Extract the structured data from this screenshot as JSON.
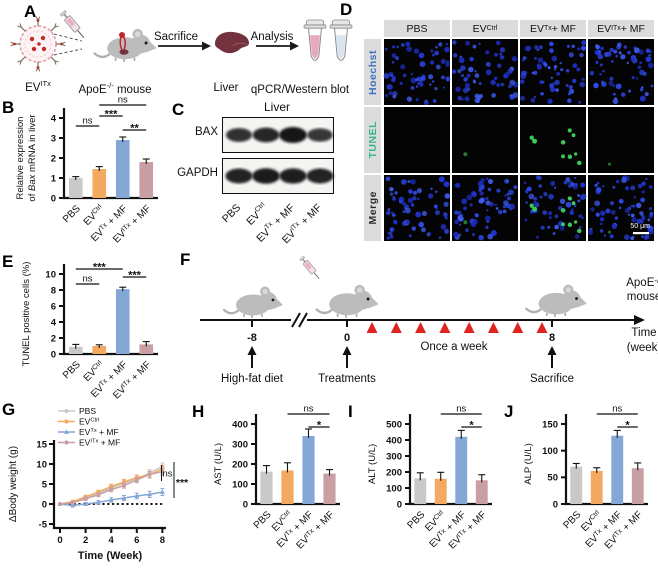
{
  "panel_labels": {
    "A": "A",
    "B": "B",
    "C": "C",
    "D": "D",
    "E": "E",
    "F": "F",
    "G": "G",
    "H": "H",
    "I": "I",
    "J": "J"
  },
  "groups": {
    "names": [
      [
        {
          "t": "PBS"
        }
      ],
      [
        {
          "t": "EV"
        },
        {
          "t": "Ctrl",
          "sup": 1
        }
      ],
      [
        {
          "t": "EV"
        },
        {
          "t": "Tx",
          "sup": 1
        },
        {
          "t": " + MF"
        }
      ],
      [
        {
          "t": "EV"
        },
        {
          "t": "ITx",
          "sup": 1
        },
        {
          "t": " + MF"
        }
      ]
    ],
    "colors": [
      "#c9c9c9",
      "#f3a95f",
      "#84a7d6",
      "#c99fa4"
    ]
  },
  "panelA": {
    "ev_label": [
      {
        "t": "EV"
      },
      {
        "t": "ITx",
        "sup": 1
      }
    ],
    "mouse_label": [
      {
        "t": "ApoE"
      },
      {
        "t": "-/-",
        "sup": 1
      },
      {
        "t": " mouse"
      }
    ],
    "step1": "Sacrifice",
    "step2": "Analysis",
    "liver_label": "Liver",
    "analysis_label": "qPCR/Western blot"
  },
  "panelC": {
    "title": "Liver",
    "band_labels": [
      "BAX",
      "GAPDH"
    ],
    "bax_intensities": [
      0.75,
      0.85,
      1.0,
      0.7
    ],
    "gapdh_intensities": [
      0.88,
      0.95,
      0.92,
      0.88
    ]
  },
  "panelD": {
    "row_labels": [
      {
        "text": "Hoechst",
        "color": "#3a6fc4"
      },
      {
        "text": "TUNEL",
        "color": "#37b886"
      },
      {
        "text": "Merge",
        "color": "#2b2b2b"
      }
    ],
    "scale_bar": "50 μm",
    "hoechst_count": 56,
    "tunel_counts": [
      0,
      1,
      9,
      1
    ]
  },
  "panelF": {
    "tick_labels": [
      "-8",
      "0",
      "8"
    ],
    "event_labels": [
      "High-fat diet",
      "Treatments",
      "Sacrifice"
    ],
    "repeat_label": "Once a week",
    "n_triangles": 8,
    "triangle_color": "#e02420",
    "mouse_label_lines": [
      [
        {
          "t": "ApoE"
        },
        {
          "t": "-/-",
          "sup": 1
        }
      ],
      [
        {
          "t": "mouse"
        }
      ]
    ],
    "time_label_lines": [
      "Time",
      "(week)"
    ]
  },
  "chart_data": [
    {
      "id": "B",
      "type": "bar",
      "ylabel_rich": [
        [
          {
            "t": "Relative expression"
          }
        ],
        [
          {
            "t": "of "
          },
          {
            "t": "Bax",
            "it": 1
          },
          {
            "t": " mRNA in liver"
          }
        ]
      ],
      "ylim": [
        0,
        4
      ],
      "yticks": [
        0,
        1,
        2,
        3,
        4
      ],
      "values": [
        1.0,
        1.45,
        2.9,
        1.8
      ],
      "errors": [
        0.07,
        0.12,
        0.15,
        0.15
      ],
      "sig": [
        {
          "a": 0,
          "b": 1,
          "t": "ns",
          "y": 26
        },
        {
          "a": 1,
          "b": 2,
          "t": "***",
          "y": 16
        },
        {
          "a": 1,
          "b": 3,
          "t": "ns",
          "y": 5
        },
        {
          "a": 2,
          "b": 3,
          "t": "**",
          "y": 30
        }
      ]
    },
    {
      "id": "E",
      "type": "bar",
      "ylabel_rich": [
        [
          {
            "t": "TUNEL positive cells (%)"
          }
        ]
      ],
      "ylim": [
        0,
        10
      ],
      "yticks": [
        0,
        2,
        4,
        6,
        8,
        10
      ],
      "values": [
        0.9,
        1.0,
        8.1,
        1.2
      ],
      "errors": [
        0.3,
        0.15,
        0.25,
        0.35
      ],
      "sig": [
        {
          "a": 0,
          "b": 1,
          "t": "ns",
          "y": 28
        },
        {
          "a": 0,
          "b": 2,
          "t": "***",
          "y": 13
        },
        {
          "a": 2,
          "b": 3,
          "t": "***",
          "y": 21
        }
      ]
    },
    {
      "id": "H",
      "type": "bar",
      "ylabel_rich": [
        [
          {
            "t": "AST (U/L)"
          }
        ]
      ],
      "ylim": [
        0,
        400
      ],
      "yticks": [
        0,
        100,
        200,
        300,
        400
      ],
      "values": [
        162,
        168,
        340,
        152
      ],
      "errors": [
        30,
        38,
        35,
        20
      ],
      "sig": [
        {
          "a": 1,
          "b": 3,
          "t": "ns",
          "y": 8
        },
        {
          "a": 2,
          "b": 3,
          "t": "*",
          "y": 21
        }
      ]
    },
    {
      "id": "I",
      "type": "bar",
      "ylabel_rich": [
        [
          {
            "t": "ALT (U/L)"
          }
        ]
      ],
      "ylim": [
        0,
        500
      ],
      "yticks": [
        0,
        100,
        200,
        300,
        400,
        500
      ],
      "values": [
        160,
        158,
        420,
        148
      ],
      "errors": [
        35,
        40,
        40,
        35
      ],
      "sig": [
        {
          "a": 1,
          "b": 3,
          "t": "ns",
          "y": 8
        },
        {
          "a": 2,
          "b": 3,
          "t": "*",
          "y": 21
        }
      ]
    },
    {
      "id": "J",
      "type": "bar",
      "ylabel_rich": [
        [
          {
            "t": "ALP (U/L)"
          }
        ]
      ],
      "ylim": [
        0,
        150
      ],
      "yticks": [
        0,
        50,
        100,
        150
      ],
      "values": [
        70,
        62,
        128,
        67
      ],
      "errors": [
        6,
        6,
        10,
        10
      ],
      "sig": [
        {
          "a": 1,
          "b": 3,
          "t": "ns",
          "y": 8
        },
        {
          "a": 2,
          "b": 3,
          "t": "*",
          "y": 21
        }
      ]
    },
    {
      "id": "G",
      "type": "line",
      "ylabel": "ΔBody weight (g)",
      "xlabel": "Time (Week)",
      "ylim": [
        -5,
        15
      ],
      "yticks": [
        -5,
        0,
        5,
        10,
        15
      ],
      "xticks": [
        0,
        2,
        4,
        6,
        8
      ],
      "x": [
        0,
        1,
        2,
        3,
        4,
        5,
        6,
        7,
        8
      ],
      "series": [
        {
          "name": [
            {
              "t": "PBS"
            }
          ],
          "color": "#c9c9c9",
          "marker": "circle",
          "values": [
            0,
            0.5,
            1.5,
            2.6,
            4.0,
            5.2,
            6.2,
            7.8,
            9.4
          ]
        },
        {
          "name": [
            {
              "t": "EV"
            },
            {
              "t": "Ctrl",
              "sup": 1
            }
          ],
          "color": "#f3a95f",
          "marker": "circle",
          "values": [
            0,
            0.6,
            1.8,
            3.0,
            4.4,
            5.5,
            6.6,
            7.3,
            8.8
          ]
        },
        {
          "name": [
            {
              "t": "EV"
            },
            {
              "t": "Tx",
              "sup": 1
            },
            {
              "t": " + MF"
            }
          ],
          "color": "#84a7d6",
          "marker": "triangle",
          "values": [
            0,
            -0.4,
            0,
            0.4,
            1.0,
            1.5,
            2.0,
            2.4,
            3.0
          ]
        },
        {
          "name": [
            {
              "t": "EV"
            },
            {
              "t": "ITx",
              "sup": 1
            },
            {
              "t": " + MF"
            }
          ],
          "color": "#c99fa4",
          "marker": "circle",
          "values": [
            0,
            0.3,
            1.3,
            2.3,
            3.6,
            4.6,
            6.0,
            7.4,
            8.1
          ]
        }
      ],
      "annotations": [
        {
          "t": "ns"
        },
        {
          "t": "***"
        }
      ]
    }
  ]
}
